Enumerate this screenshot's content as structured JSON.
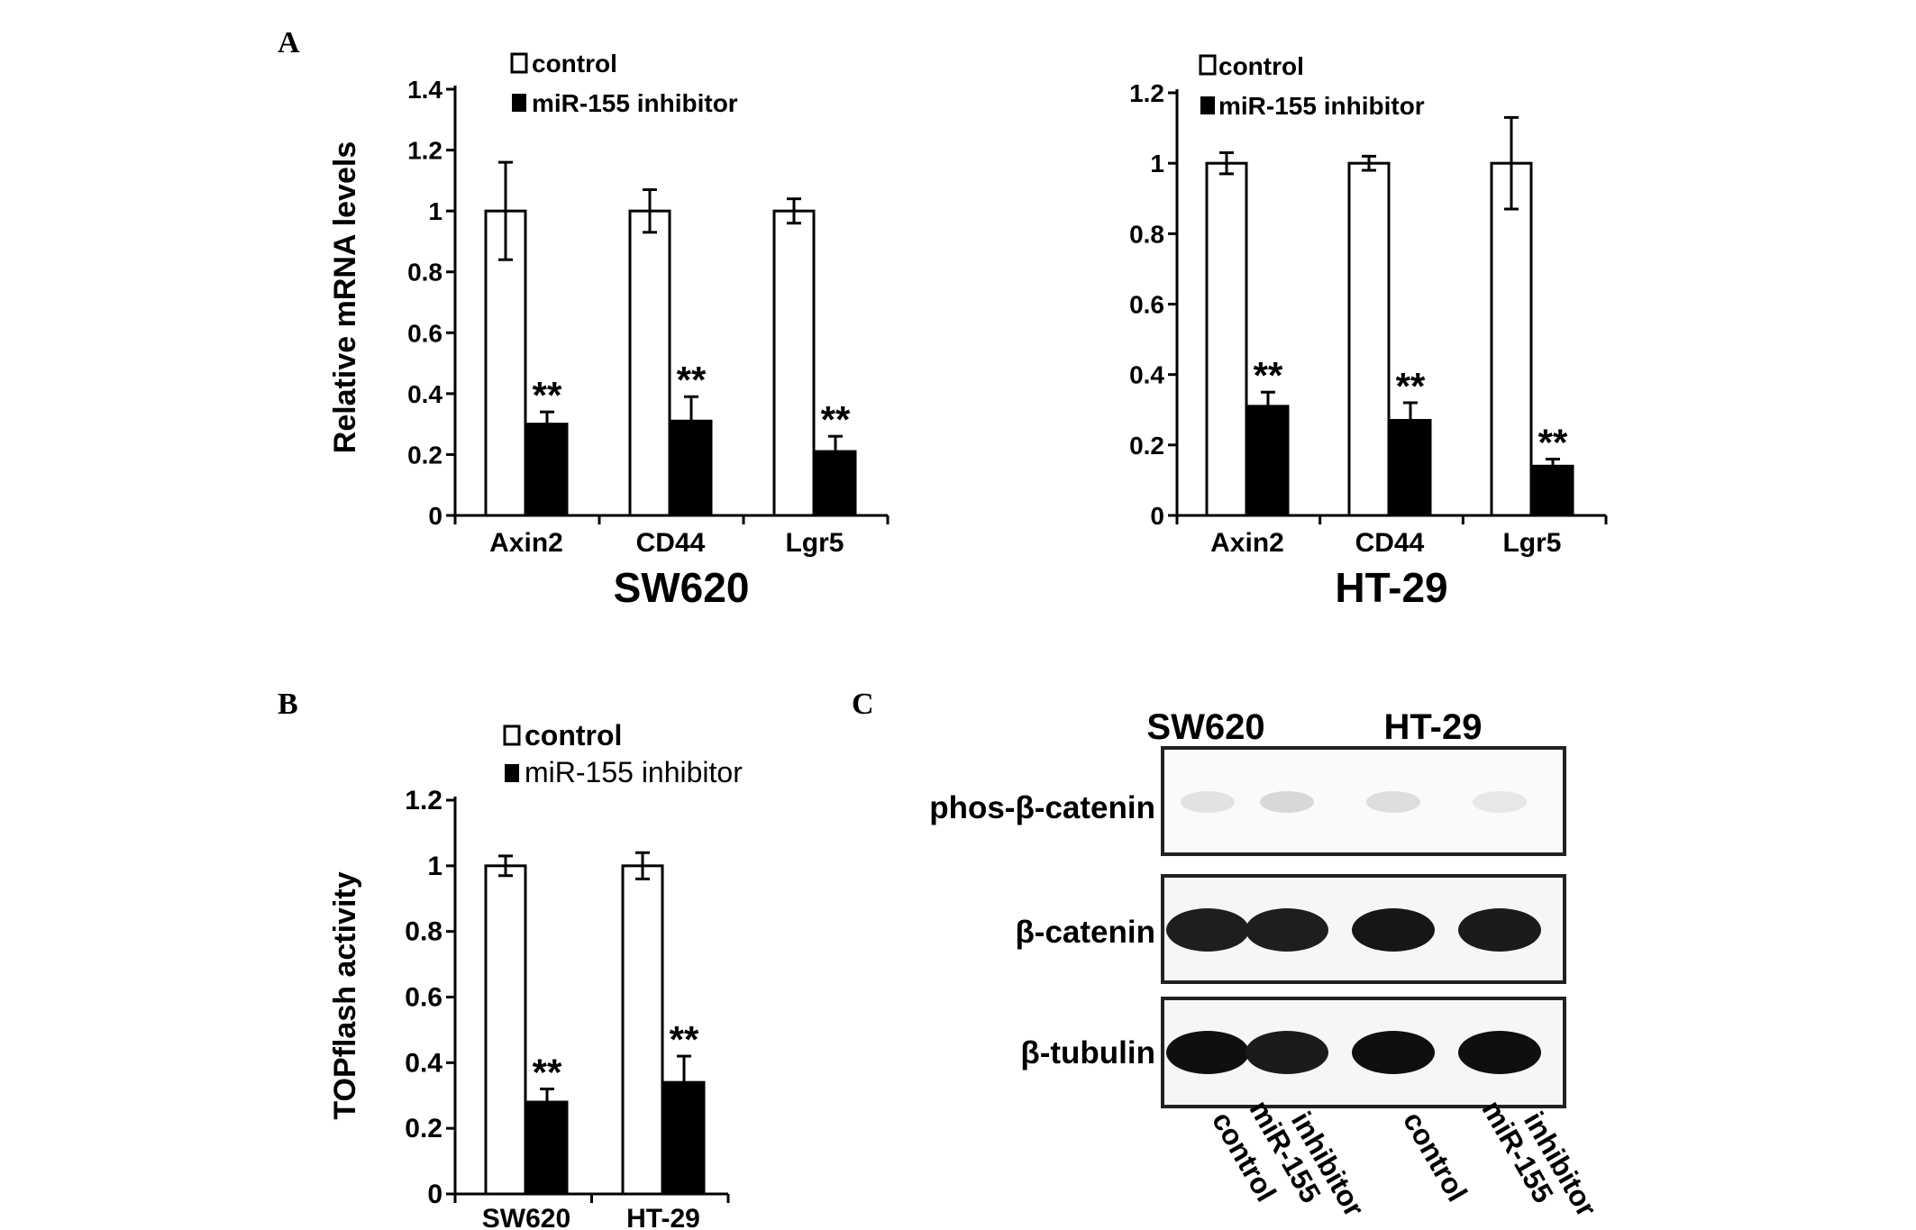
{
  "panel_labels": {
    "a": "A",
    "b": "B",
    "c": "C"
  },
  "legend": {
    "control": "control",
    "inhibitor": "miR-155 inhibitor"
  },
  "significance": "**",
  "chart_data": [
    {
      "id": "a_sw620",
      "type": "bar",
      "title": "SW620",
      "ylabel": "Relative mRNA levels",
      "xlabel": "",
      "categories": [
        "Axin2",
        "CD44",
        "Lgr5"
      ],
      "ylim": [
        0,
        1.4
      ],
      "yticks": [
        "0",
        "0.2",
        "0.4",
        "0.6",
        "0.8",
        "1",
        "1.2",
        "1.4"
      ],
      "series": [
        {
          "name": "control",
          "values": [
            1.0,
            1.0,
            1.0
          ],
          "errors": [
            0.16,
            0.07,
            0.04
          ]
        },
        {
          "name": "miR-155 inhibitor",
          "values": [
            0.3,
            0.31,
            0.21
          ],
          "errors": [
            0.04,
            0.08,
            0.05
          ]
        }
      ]
    },
    {
      "id": "a_ht29",
      "type": "bar",
      "title": "HT-29",
      "ylabel": "",
      "xlabel": "",
      "categories": [
        "Axin2",
        "CD44",
        "Lgr5"
      ],
      "ylim": [
        0,
        1.2
      ],
      "yticks": [
        "0",
        "0.2",
        "0.4",
        "0.6",
        "0.8",
        "1",
        "1.2"
      ],
      "series": [
        {
          "name": "control",
          "values": [
            1.0,
            1.0,
            1.0
          ],
          "errors": [
            0.03,
            0.02,
            0.13
          ]
        },
        {
          "name": "miR-155 inhibitor",
          "values": [
            0.31,
            0.27,
            0.14
          ],
          "errors": [
            0.04,
            0.05,
            0.02
          ]
        }
      ]
    },
    {
      "id": "b_topflash",
      "type": "bar",
      "title": "",
      "ylabel": "TOPflash activity",
      "xlabel": "",
      "categories": [
        "SW620",
        "HT-29"
      ],
      "ylim": [
        0,
        1.2
      ],
      "yticks": [
        "0",
        "0.2",
        "0.4",
        "0.6",
        "0.8",
        "1",
        "1.2"
      ],
      "series": [
        {
          "name": "control",
          "values": [
            1.0,
            1.0
          ],
          "errors": [
            0.03,
            0.04
          ]
        },
        {
          "name": "miR-155 inhibitor",
          "values": [
            0.28,
            0.34
          ],
          "errors": [
            0.04,
            0.08
          ]
        }
      ]
    }
  ],
  "blot": {
    "cell_lines": [
      "SW620",
      "HT-29"
    ],
    "rows": [
      {
        "label": "phos-β-catenin",
        "intensity": [
          0.12,
          0.16,
          0.14,
          0.1
        ]
      },
      {
        "label": "β-catenin",
        "intensity": [
          0.92,
          0.92,
          0.95,
          0.93
        ]
      },
      {
        "label": "β-tubulin",
        "intensity": [
          0.98,
          0.93,
          0.98,
          0.98
        ]
      }
    ],
    "lanes": [
      "control",
      "miR-155\ninhibitor",
      "control",
      "miR-155\ninhibitor"
    ]
  }
}
